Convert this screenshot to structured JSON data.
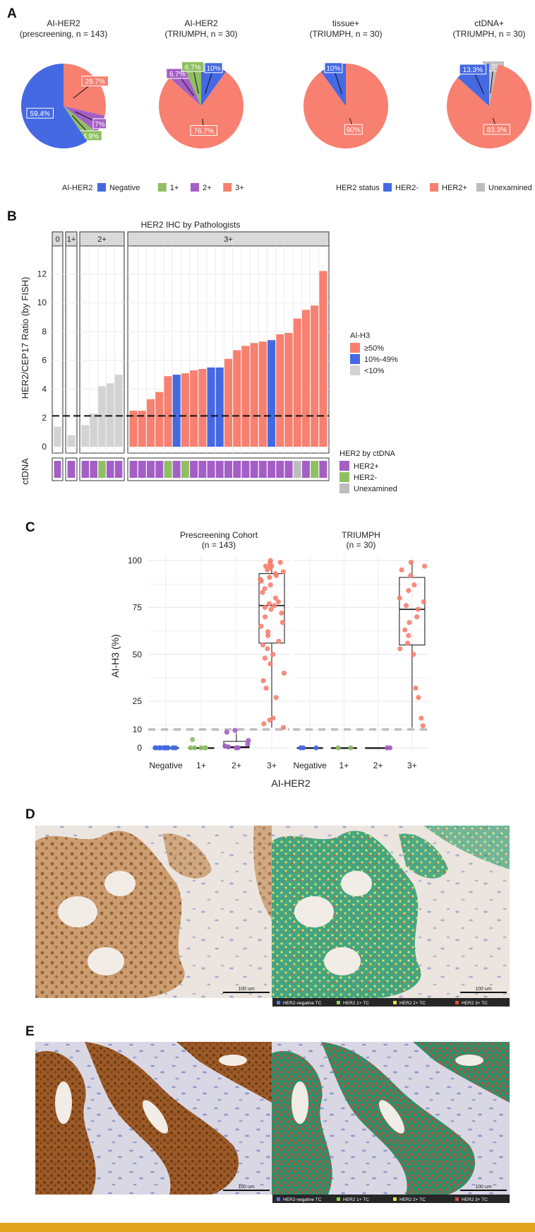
{
  "panels": {
    "a_label": "A",
    "b_label": "B",
    "c_label": "C",
    "d_label": "D",
    "e_label": "E"
  },
  "colors": {
    "negative": "#4569e3",
    "one_plus": "#8fbf62",
    "two_plus": "#a45fc6",
    "three_plus": "#f78070",
    "unexamined": "#bdbdbd",
    "high": "#f78070",
    "mid": "#4569e3",
    "low": "#d3d3d3",
    "frame": "#e1a41f"
  },
  "pies": [
    {
      "title_line1": "AI-HER2",
      "title_line2": "(prescreening, n = 143)",
      "slices": [
        {
          "category": "3+",
          "value": 28.7,
          "label": "28.7%"
        },
        {
          "category": "2+",
          "value": 7.0,
          "label": "7%"
        },
        {
          "category": "1+",
          "value": 4.9,
          "label": "4.9%"
        },
        {
          "category": "Negative",
          "value": 59.4,
          "label": "59.4%"
        }
      ]
    },
    {
      "title_line1": "AI-HER2",
      "title_line2": "(TRIUMPH, n = 30)",
      "slices": [
        {
          "category": "Negative",
          "value": 10.0,
          "label": "10%"
        },
        {
          "category": "3+",
          "value": 76.7,
          "label": "76.7%"
        },
        {
          "category": "2+",
          "value": 6.7,
          "label": "6.7%"
        },
        {
          "category": "1+",
          "value": 6.7,
          "label": "6.7%"
        }
      ]
    },
    {
      "title_line1": "tissue+",
      "title_line2": "(TRIUMPH, n = 30)",
      "slices": [
        {
          "category": "HER2+",
          "value": 90.0,
          "label": "90%"
        },
        {
          "category": "HER2-",
          "value": 10.0,
          "label": "10%"
        }
      ]
    },
    {
      "title_line1": "ctDNA+",
      "title_line2": "(TRIUMPH, n = 30)",
      "slices": [
        {
          "category": "Unexamined",
          "value": 3.3,
          "label": "3.3%"
        },
        {
          "category": "HER2+",
          "value": 83.3,
          "label": "83.3%"
        },
        {
          "category": "HER2-",
          "value": 13.3,
          "label": "13.3%"
        }
      ]
    }
  ],
  "legend_a1": {
    "title": "AI-HER2",
    "items": [
      {
        "label": "Negative",
        "key": "negative"
      },
      {
        "label": "1+",
        "key": "one_plus"
      },
      {
        "label": "2+",
        "key": "two_plus"
      },
      {
        "label": "3+",
        "key": "three_plus"
      }
    ]
  },
  "legend_a2": {
    "title": "HER2 status",
    "items": [
      {
        "label": "HER2-",
        "key": "negative"
      },
      {
        "label": "HER2+",
        "key": "three_plus"
      },
      {
        "label": "Unexamined",
        "key": "unexamined"
      }
    ]
  },
  "chart_b": {
    "title": "HER2 IHC by Pathologists",
    "ylabel": "HER2/CEP17 Ratio (by FISH)",
    "ctdna_label": "ctDNA",
    "yticks": [
      "0",
      "2",
      "4",
      "6",
      "8",
      "10",
      "12"
    ],
    "legend_ai_title": "AI-H3",
    "legend_ai_items": [
      {
        "label": "≥50%",
        "key": "high"
      },
      {
        "label": "10%-49%",
        "key": "mid"
      },
      {
        "label": "<10%",
        "key": "low"
      }
    ],
    "legend_ct_title": "HER2 by ctDNA",
    "legend_ct_items": [
      {
        "label": "HER2+",
        "key": "two_plus"
      },
      {
        "label": "HER2-",
        "key": "one_plus"
      },
      {
        "label": "Unexamined",
        "key": "unexamined"
      }
    ],
    "groups": [
      {
        "label": "0",
        "bars": [
          {
            "v": 1.4,
            "c": "low",
            "ct": "p"
          }
        ]
      },
      {
        "label": "1+",
        "bars": [
          {
            "v": 0.8,
            "c": "low",
            "ct": "p"
          }
        ]
      },
      {
        "label": "2+",
        "bars": [
          {
            "v": 1.5,
            "c": "low",
            "ct": "p"
          },
          {
            "v": 2.3,
            "c": "low",
            "ct": "p"
          },
          {
            "v": 4.2,
            "c": "low",
            "ct": "n"
          },
          {
            "v": 4.4,
            "c": "low",
            "ct": "p"
          },
          {
            "v": 5.0,
            "c": "low",
            "ct": "p"
          }
        ]
      },
      {
        "label": "3+",
        "bars": [
          {
            "v": 2.5,
            "c": "high",
            "ct": "p"
          },
          {
            "v": 2.5,
            "c": "high",
            "ct": "p"
          },
          {
            "v": 3.3,
            "c": "high",
            "ct": "p"
          },
          {
            "v": 3.8,
            "c": "high",
            "ct": "p"
          },
          {
            "v": 4.9,
            "c": "high",
            "ct": "n"
          },
          {
            "v": 5.0,
            "c": "mid",
            "ct": "p"
          },
          {
            "v": 5.1,
            "c": "high",
            "ct": "n"
          },
          {
            "v": 5.3,
            "c": "high",
            "ct": "p"
          },
          {
            "v": 5.4,
            "c": "high",
            "ct": "p"
          },
          {
            "v": 5.5,
            "c": "mid",
            "ct": "p"
          },
          {
            "v": 5.5,
            "c": "mid",
            "ct": "p"
          },
          {
            "v": 6.1,
            "c": "high",
            "ct": "p"
          },
          {
            "v": 6.7,
            "c": "high",
            "ct": "p"
          },
          {
            "v": 7.0,
            "c": "high",
            "ct": "p"
          },
          {
            "v": 7.2,
            "c": "high",
            "ct": "p"
          },
          {
            "v": 7.3,
            "c": "high",
            "ct": "p"
          },
          {
            "v": 7.4,
            "c": "mid",
            "ct": "p"
          },
          {
            "v": 7.8,
            "c": "high",
            "ct": "p"
          },
          {
            "v": 7.9,
            "c": "high",
            "ct": "p"
          },
          {
            "v": 8.9,
            "c": "high",
            "ct": "u"
          },
          {
            "v": 9.5,
            "c": "high",
            "ct": "p"
          },
          {
            "v": 9.8,
            "c": "high",
            "ct": "n"
          },
          {
            "v": 12.2,
            "c": "high",
            "ct": "p"
          }
        ]
      }
    ]
  },
  "chart_c": {
    "ylabel": "AI-H3 (%)",
    "xlabel": "AI-HER2",
    "yticks": [
      "0",
      "10",
      "25",
      "50",
      "75",
      "100"
    ],
    "facets": [
      {
        "title_line1": "Prescreening Cohort",
        "title_line2": "(n = 143)",
        "categories": [
          "Negative",
          "1+",
          "2+",
          "3+"
        ],
        "boxes": [
          {
            "q1": 0,
            "median": 0,
            "q3": 0,
            "lo": 0,
            "hi": 0
          },
          {
            "q1": 0,
            "median": 0,
            "q3": 0,
            "lo": 0,
            "hi": 0
          },
          {
            "q1": 0,
            "median": 0.5,
            "q3": 3.5,
            "lo": 0,
            "hi": 8
          },
          {
            "q1": 56,
            "median": 76,
            "q3": 93,
            "lo": 11,
            "hi": 100
          }
        ],
        "points": [
          [
            0,
            0
          ],
          [
            0,
            0
          ],
          [
            0,
            0
          ],
          [
            0,
            0
          ],
          [
            0,
            0
          ],
          [
            0,
            0
          ],
          [
            0,
            0
          ],
          [
            0,
            0
          ],
          [
            0,
            0
          ],
          [
            0,
            0
          ],
          [
            0,
            0
          ],
          [
            0,
            0
          ],
          [
            1,
            0
          ],
          [
            1,
            0
          ],
          [
            1,
            0
          ],
          [
            1,
            0
          ],
          [
            1,
            0
          ],
          [
            1,
            4.5
          ],
          [
            2,
            0
          ],
          [
            2,
            0
          ],
          [
            2,
            0.5
          ],
          [
            2,
            1
          ],
          [
            2,
            2
          ],
          [
            2,
            4
          ],
          [
            2,
            8.5
          ],
          [
            2,
            9.5
          ],
          [
            3,
            11
          ],
          [
            3,
            13
          ],
          [
            3,
            15
          ],
          [
            3,
            16
          ],
          [
            3,
            27
          ],
          [
            3,
            32
          ],
          [
            3,
            36
          ],
          [
            3,
            40
          ],
          [
            3,
            45
          ],
          [
            3,
            48
          ],
          [
            3,
            50
          ],
          [
            3,
            53
          ],
          [
            3,
            55
          ],
          [
            3,
            57
          ],
          [
            3,
            60
          ],
          [
            3,
            62
          ],
          [
            3,
            65
          ],
          [
            3,
            67
          ],
          [
            3,
            70
          ],
          [
            3,
            72
          ],
          [
            3,
            74
          ],
          [
            3,
            75
          ],
          [
            3,
            76
          ],
          [
            3,
            77
          ],
          [
            3,
            78
          ],
          [
            3,
            80
          ],
          [
            3,
            83
          ],
          [
            3,
            85
          ],
          [
            3,
            87
          ],
          [
            3,
            89
          ],
          [
            3,
            90
          ],
          [
            3,
            91
          ],
          [
            3,
            92
          ],
          [
            3,
            93
          ],
          [
            3,
            94
          ],
          [
            3,
            95
          ],
          [
            3,
            96
          ],
          [
            3,
            97
          ],
          [
            3,
            98
          ],
          [
            3,
            99
          ],
          [
            3,
            100
          ],
          [
            3,
            99
          ],
          [
            3,
            97
          ]
        ]
      },
      {
        "title_line1": "TRIUMPH",
        "title_line2": "(n = 30)",
        "categories": [
          "Negative",
          "1+",
          "2+",
          "3+"
        ],
        "boxes": [
          {
            "q1": 0,
            "median": 0,
            "q3": 0,
            "lo": 0,
            "hi": 0
          },
          {
            "q1": 0,
            "median": 0,
            "q3": 0,
            "lo": 0,
            "hi": 0
          },
          {
            "q1": 0,
            "median": 0,
            "q3": 0,
            "lo": 0,
            "hi": 0
          },
          {
            "q1": 55,
            "median": 74,
            "q3": 91,
            "lo": 11,
            "hi": 100
          }
        ],
        "points": [
          [
            0,
            0
          ],
          [
            0,
            0
          ],
          [
            0,
            0
          ],
          [
            1,
            0
          ],
          [
            1,
            0
          ],
          [
            2,
            0
          ],
          [
            2,
            0
          ],
          [
            3,
            12
          ],
          [
            3,
            16
          ],
          [
            3,
            27
          ],
          [
            3,
            32
          ],
          [
            3,
            50
          ],
          [
            3,
            53
          ],
          [
            3,
            56
          ],
          [
            3,
            60
          ],
          [
            3,
            63
          ],
          [
            3,
            67
          ],
          [
            3,
            70
          ],
          [
            3,
            74
          ],
          [
            3,
            76
          ],
          [
            3,
            78
          ],
          [
            3,
            80
          ],
          [
            3,
            84
          ],
          [
            3,
            87
          ],
          [
            3,
            92
          ],
          [
            3,
            95
          ],
          [
            3,
            97
          ],
          [
            3,
            99
          ]
        ]
      }
    ]
  },
  "legend_d": [
    "HER2-negative TC",
    "HER2 1+ TC",
    "HER2 2+ TC",
    "HER2 3+ TC"
  ],
  "scale_d": "100 um",
  "legend_e": [
    "HER2-negative TC",
    "HER2 1+ TC",
    "HER2 2+ TC",
    "HER2 3+ TC"
  ],
  "scale_e": "100 um"
}
